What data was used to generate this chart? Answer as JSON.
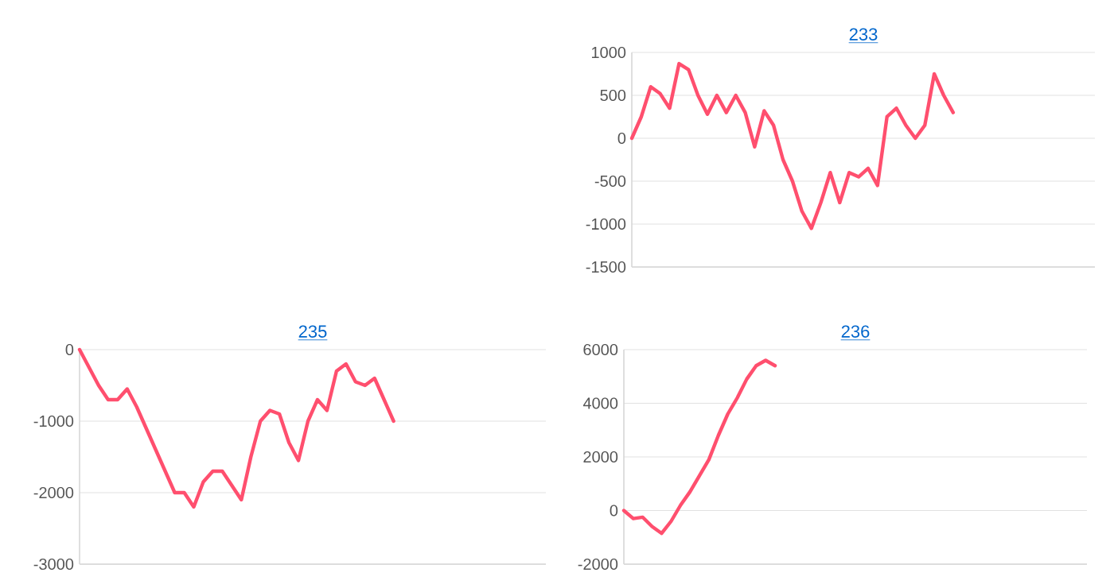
{
  "chart_data": [
    {
      "type": "line",
      "title": "233",
      "categories": [
        null,
        null,
        null,
        null,
        null,
        null,
        null,
        null,
        null,
        null,
        null,
        null,
        null,
        null,
        null,
        null,
        null,
        null,
        null,
        null,
        null,
        null,
        null,
        null,
        null,
        null,
        null,
        null,
        null,
        null,
        null,
        null,
        null,
        null,
        null,
        null,
        null,
        null,
        null,
        null,
        null,
        null,
        null,
        null,
        null,
        null,
        null,
        null,
        null,
        null
      ],
      "series": [
        {
          "color": "#ff4f6e",
          "values": [
            0,
            250,
            600,
            520,
            350,
            870,
            800,
            500,
            280,
            500,
            300,
            500,
            300,
            -100,
            320,
            150,
            -250,
            -500,
            -850,
            -1050,
            -750,
            -400,
            -750,
            -400,
            -450,
            -350,
            -550,
            250,
            350,
            150,
            0,
            150,
            750,
            500,
            300,
            null,
            null,
            null,
            null,
            null,
            null,
            null,
            null,
            null,
            null,
            null,
            null,
            null,
            null,
            null
          ]
        }
      ],
      "ylim": [
        -1500,
        1000
      ],
      "yticks": [
        -1500,
        -1000,
        -500,
        0,
        500,
        1000
      ],
      "grid": "y",
      "tick_labels": "y"
    },
    {
      "type": "line",
      "title": "235",
      "categories": [
        null,
        null,
        null,
        null,
        null,
        null,
        null,
        null,
        null,
        null,
        null,
        null,
        null,
        null,
        null,
        null,
        null,
        null,
        null,
        null,
        null,
        null,
        null,
        null,
        null,
        null,
        null,
        null,
        null,
        null,
        null,
        null,
        null,
        null,
        null,
        null,
        null,
        null,
        null,
        null,
        null,
        null,
        null,
        null,
        null,
        null,
        null,
        null,
        null,
        null
      ],
      "series": [
        {
          "color": "#ff4f6e",
          "values": [
            0,
            -250,
            -500,
            -700,
            -700,
            -550,
            -800,
            -1100,
            -1400,
            -1700,
            -2000,
            -2000,
            -2200,
            -1850,
            -1700,
            -1700,
            -1900,
            -2100,
            -1500,
            -1000,
            -850,
            -900,
            -1300,
            -1550,
            -1000,
            -700,
            -850,
            -300,
            -200,
            -450,
            -500,
            -400,
            -700,
            -1000,
            null,
            null,
            null,
            null,
            null,
            null,
            null,
            null,
            null,
            null,
            null,
            null,
            null,
            null,
            null,
            null
          ]
        }
      ],
      "ylim": [
        -3000,
        0
      ],
      "yticks": [
        -3000,
        -2000,
        -1000,
        0
      ],
      "grid": "y",
      "tick_labels": "y"
    },
    {
      "type": "line",
      "title": "236",
      "categories": [
        null,
        null,
        null,
        null,
        null,
        null,
        null,
        null,
        null,
        null,
        null,
        null,
        null,
        null,
        null,
        null,
        null,
        null,
        null,
        null,
        null,
        null,
        null,
        null,
        null,
        null,
        null,
        null,
        null,
        null,
        null,
        null,
        null,
        null,
        null,
        null,
        null,
        null,
        null,
        null,
        null,
        null,
        null,
        null,
        null,
        null,
        null,
        null,
        null,
        null
      ],
      "series": [
        {
          "color": "#ff4f6e",
          "values": [
            0,
            -300,
            -250,
            -600,
            -850,
            -400,
            200,
            700,
            1300,
            1900,
            2800,
            3600,
            4200,
            4900,
            5400,
            5600,
            5400,
            null,
            null,
            null,
            null,
            null,
            null,
            null,
            null,
            null,
            null,
            null,
            null,
            null,
            null,
            null,
            null,
            null,
            null,
            null,
            null,
            null,
            null,
            null,
            null,
            null,
            null,
            null,
            null,
            null,
            null,
            null,
            null,
            null
          ]
        }
      ],
      "ylim": [
        -2000,
        6000
      ],
      "yticks": [
        -2000,
        0,
        2000,
        4000,
        6000
      ],
      "grid": "y",
      "tick_labels": "y"
    }
  ]
}
